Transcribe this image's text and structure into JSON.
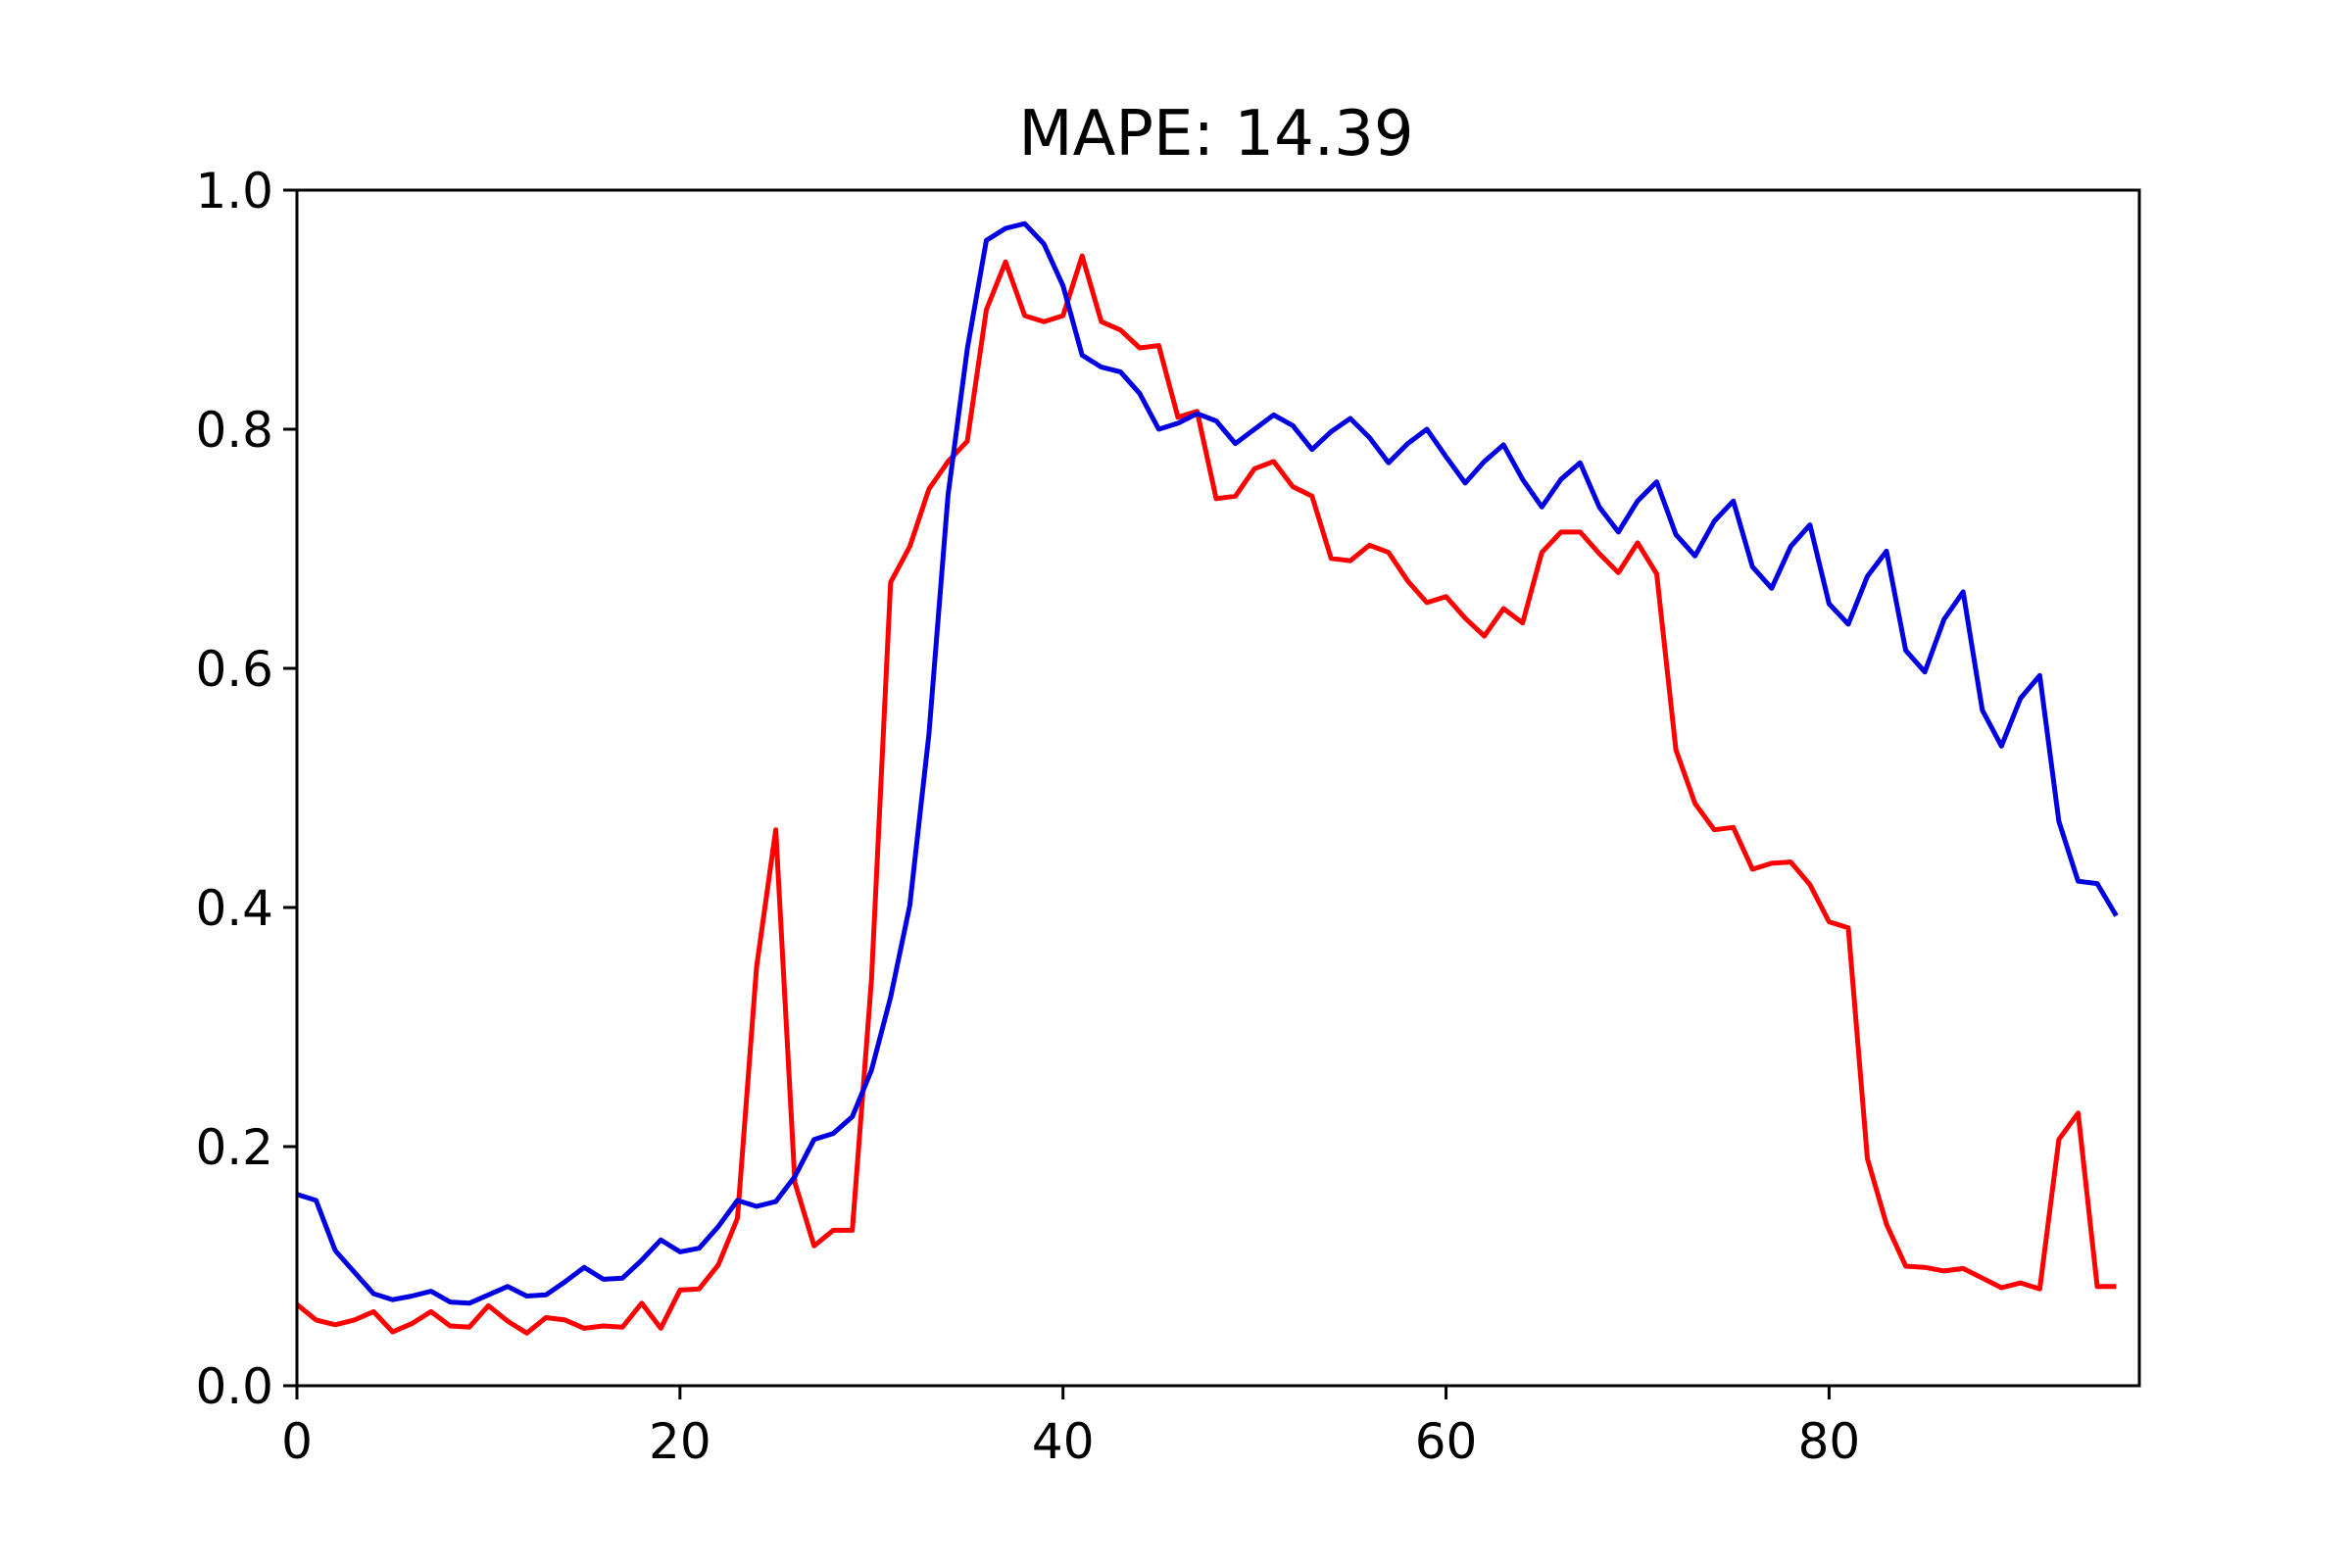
{
  "chart_data": {
    "type": "line",
    "title": "MAPE: 14.39",
    "xlabel": "",
    "ylabel": "",
    "xlim": [
      0,
      96
    ],
    "ylim": [
      0.0,
      1.0
    ],
    "xticks": [
      0,
      20,
      40,
      60,
      80
    ],
    "xtick_labels": [
      "0",
      "20",
      "40",
      "60",
      "80"
    ],
    "yticks": [
      0.0,
      0.2,
      0.4,
      0.6,
      0.8,
      1.0
    ],
    "ytick_labels": [
      "0.0",
      "0.2",
      "0.4",
      "0.6",
      "0.8",
      "1.0"
    ],
    "grid": false,
    "legend": "none",
    "x": [
      0,
      1,
      2,
      3,
      4,
      5,
      6,
      7,
      8,
      9,
      10,
      11,
      12,
      13,
      14,
      15,
      16,
      17,
      18,
      19,
      20,
      21,
      22,
      23,
      24,
      25,
      26,
      27,
      28,
      29,
      30,
      31,
      32,
      33,
      34,
      35,
      36,
      37,
      38,
      39,
      40,
      41,
      42,
      43,
      44,
      45,
      46,
      47,
      48,
      49,
      50,
      51,
      52,
      53,
      54,
      55,
      56,
      57,
      58,
      59,
      60,
      61,
      62,
      63,
      64,
      65,
      66,
      67,
      68,
      69,
      70,
      71,
      72,
      73,
      74,
      75,
      76,
      77,
      78,
      79,
      80,
      81,
      82,
      83,
      84,
      85,
      86,
      87,
      88,
      89,
      90,
      91,
      92,
      93,
      94,
      95
    ],
    "series": [
      {
        "color": "#ff0000",
        "values": [
          0.068,
          0.055,
          0.051,
          0.055,
          0.062,
          0.045,
          0.052,
          0.062,
          0.05,
          0.049,
          0.067,
          0.054,
          0.044,
          0.057,
          0.055,
          0.048,
          0.05,
          0.049,
          0.069,
          0.048,
          0.08,
          0.081,
          0.101,
          0.14,
          0.35,
          0.465,
          0.17,
          0.117,
          0.13,
          0.13,
          0.34,
          0.672,
          0.702,
          0.75,
          0.773,
          0.79,
          0.9,
          0.94,
          0.895,
          0.89,
          0.895,
          0.945,
          0.89,
          0.883,
          0.868,
          0.87,
          0.81,
          0.815,
          0.742,
          0.744,
          0.767,
          0.773,
          0.752,
          0.744,
          0.692,
          0.69,
          0.703,
          0.697,
          0.673,
          0.655,
          0.66,
          0.642,
          0.627,
          0.65,
          0.638,
          0.697,
          0.714,
          0.714,
          0.696,
          0.68,
          0.705,
          0.679,
          0.532,
          0.487,
          0.465,
          0.467,
          0.432,
          0.437,
          0.438,
          0.419,
          0.388,
          0.383,
          0.19,
          0.135,
          0.1,
          0.099,
          0.096,
          0.098,
          0.09,
          0.082,
          0.086,
          0.081,
          0.206,
          0.228,
          0.083,
          0.083
        ]
      },
      {
        "color": "#0000e0",
        "values": [
          0.16,
          0.155,
          0.113,
          0.095,
          0.077,
          0.072,
          0.075,
          0.079,
          0.07,
          0.069,
          0.076,
          0.083,
          0.075,
          0.076,
          0.087,
          0.099,
          0.089,
          0.09,
          0.105,
          0.122,
          0.112,
          0.115,
          0.133,
          0.155,
          0.15,
          0.154,
          0.175,
          0.206,
          0.211,
          0.225,
          0.264,
          0.325,
          0.402,
          0.545,
          0.745,
          0.867,
          0.958,
          0.968,
          0.972,
          0.955,
          0.92,
          0.862,
          0.852,
          0.848,
          0.83,
          0.8,
          0.805,
          0.813,
          0.807,
          0.788,
          0.8,
          0.812,
          0.803,
          0.783,
          0.798,
          0.809,
          0.793,
          0.772,
          0.788,
          0.8,
          0.777,
          0.755,
          0.773,
          0.787,
          0.758,
          0.735,
          0.758,
          0.772,
          0.735,
          0.714,
          0.74,
          0.756,
          0.712,
          0.694,
          0.723,
          0.74,
          0.685,
          0.667,
          0.702,
          0.72,
          0.654,
          0.637,
          0.677,
          0.698,
          0.615,
          0.597,
          0.641,
          0.664,
          0.565,
          0.535,
          0.575,
          0.594,
          0.472,
          0.422,
          0.42,
          0.393
        ]
      }
    ]
  }
}
